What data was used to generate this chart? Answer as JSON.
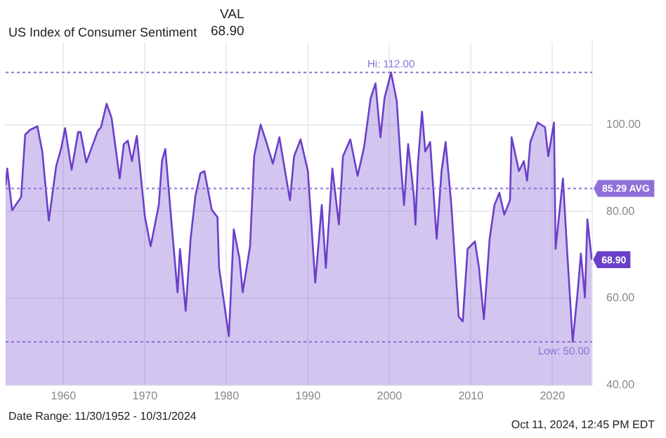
{
  "chart_data": {
    "type": "area",
    "title": "US Index of Consumer Sentiment",
    "x": [
      1952.9,
      1953.1,
      1953.7,
      1954.8,
      1955.3,
      1955.9,
      1956.8,
      1957.4,
      1958.2,
      1959.1,
      1959.7,
      1960.2,
      1961.0,
      1961.8,
      1962.1,
      1962.8,
      1964.2,
      1964.6,
      1965.3,
      1965.9,
      1966.9,
      1967.4,
      1967.9,
      1968.4,
      1969.0,
      1970.0,
      1970.7,
      1971.7,
      1972.1,
      1972.5,
      1973.3,
      1974.0,
      1974.3,
      1975.0,
      1975.6,
      1976.2,
      1976.8,
      1977.3,
      1978.2,
      1978.9,
      1979.1,
      1980.3,
      1980.9,
      1981.6,
      1982.0,
      1982.9,
      1983.4,
      1984.2,
      1984.9,
      1985.7,
      1986.5,
      1987.1,
      1987.8,
      1988.3,
      1989.1,
      1990.0,
      1990.9,
      1991.7,
      1992.2,
      1993.0,
      1993.8,
      1994.3,
      1995.2,
      1996.1,
      1996.9,
      1997.7,
      1998.3,
      1998.9,
      1999.4,
      2000.2,
      2000.9,
      2001.4,
      2001.8,
      2002.3,
      2003.0,
      2003.2,
      2003.5,
      2004.0,
      2004.4,
      2005.0,
      2005.8,
      2006.4,
      2006.9,
      2007.6,
      2008.5,
      2009.0,
      2009.6,
      2010.5,
      2011.0,
      2011.6,
      2012.3,
      2012.9,
      2013.5,
      2014.1,
      2014.8,
      2015.0,
      2015.9,
      2016.5,
      2016.9,
      2017.3,
      2018.2,
      2019.1,
      2019.5,
      2020.2,
      2020.4,
      2020.9,
      2021.3,
      2021.8,
      2022.5,
      2023.1,
      2023.5,
      2024.0,
      2024.3,
      2024.83
    ],
    "series": [
      {
        "color": "#6a3fc9",
        "values": [
          86.0,
          89.9,
          80.3,
          83.3,
          97.7,
          98.8,
          99.6,
          93.8,
          77.9,
          90.4,
          94.4,
          99.2,
          89.6,
          98.3,
          98.3,
          91.3,
          98.5,
          99.4,
          104.8,
          101.6,
          87.6,
          95.5,
          96.3,
          91.6,
          97.4,
          78.7,
          72.0,
          81.5,
          91.8,
          94.4,
          76.5,
          61.4,
          71.4,
          57.1,
          73.7,
          83.7,
          88.8,
          89.3,
          80.4,
          78.7,
          67.0,
          51.3,
          75.9,
          69.2,
          61.4,
          72.0,
          92.7,
          100.0,
          96.0,
          91.0,
          97.1,
          90.4,
          82.6,
          92.7,
          96.6,
          89.3,
          63.6,
          81.5,
          67.0,
          89.9,
          77.0,
          92.7,
          96.6,
          88.2,
          94.9,
          106.1,
          109.5,
          97.1,
          106.1,
          112.0,
          105.5,
          91.0,
          81.5,
          95.5,
          83.7,
          77.0,
          91.0,
          103.0,
          93.8,
          96.0,
          73.7,
          89.3,
          96.0,
          81.5,
          55.8,
          54.7,
          71.4,
          73.1,
          67.0,
          55.2,
          73.7,
          81.5,
          84.3,
          79.3,
          82.6,
          97.1,
          89.3,
          91.6,
          87.1,
          96.0,
          100.5,
          99.4,
          92.7,
          100.5,
          71.4,
          80.4,
          87.6,
          71.4,
          50.0,
          61.4,
          70.3,
          60.2,
          78.2,
          68.9
        ]
      }
    ],
    "xlim": [
      1952.9,
      2024.9
    ],
    "xticks": [
      1960,
      1970,
      1980,
      1990,
      2000,
      2010,
      2020
    ],
    "ylim": [
      40,
      119
    ],
    "yticks": [
      {
        "value": 40,
        "label": "40.00"
      },
      {
        "value": 60,
        "label": "60.00"
      },
      {
        "value": 80,
        "label": "80.00"
      },
      {
        "value": 100,
        "label": "100.00"
      }
    ],
    "grid": true,
    "marker": "none",
    "ref_lines": [
      {
        "axis": "y",
        "value": 112.0,
        "label": "Hi: 112.00",
        "color": "#8e6fd8",
        "line_style": "dotted"
      },
      {
        "axis": "y",
        "value": 85.29,
        "label": "85.29 AVG",
        "color": "#8e6fd8",
        "line_style": "dotted"
      },
      {
        "axis": "y",
        "value": 50.0,
        "label": "Low: 50.00",
        "color": "#8e6fd8",
        "line_style": "dotted"
      }
    ],
    "annotations": [
      "VAL",
      "68.90",
      {
        "text": "68.90",
        "x": 2024.83,
        "y": 68.9
      },
      "Date Range: 11/30/1952 - 10/31/2024",
      "Oct 11, 2024, 12:45 PM EDT"
    ]
  }
}
